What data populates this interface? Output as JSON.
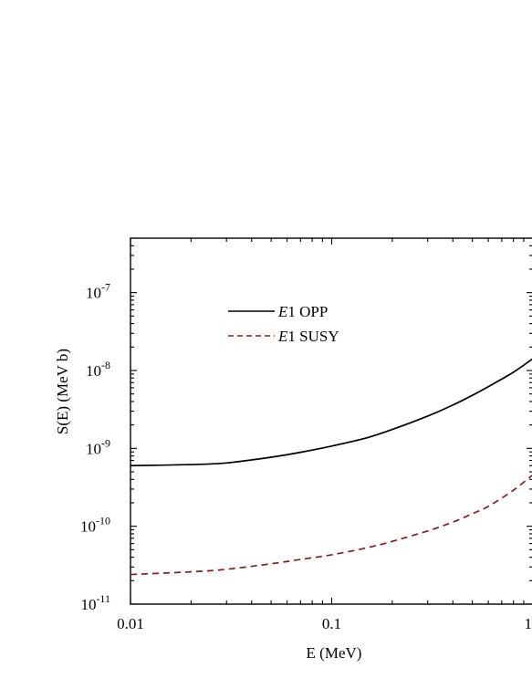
{
  "chart_data": {
    "type": "line",
    "title": "",
    "xlabel": "E (MeV)",
    "ylabel": "S(E) (MeV b)",
    "x_scale": "log",
    "y_scale": "log",
    "xlim": [
      0.01,
      1
    ],
    "ylim": [
      1e-11,
      5e-07
    ],
    "x_ticks": [
      {
        "value": 0.01,
        "label": "0.01"
      },
      {
        "value": 0.1,
        "label": "0.1"
      },
      {
        "value": 1,
        "label": "1"
      }
    ],
    "y_ticks": [
      {
        "value": 1e-11,
        "base": "10",
        "exp": "-11"
      },
      {
        "value": 1e-10,
        "base": "10",
        "exp": "-10"
      },
      {
        "value": 1e-09,
        "base": "10",
        "exp": "-9"
      },
      {
        "value": 1e-08,
        "base": "10",
        "exp": "-8"
      },
      {
        "value": 1e-07,
        "base": "10",
        "exp": "-7"
      }
    ],
    "grid": false,
    "legend_position": "top-left",
    "series": [
      {
        "name": "E1 OPP",
        "name_italic": "E",
        "name_rest": "1 OPP",
        "color": "#000000",
        "dash": "solid",
        "x": [
          0.01,
          0.02,
          0.03,
          0.05,
          0.07,
          0.1,
          0.15,
          0.2,
          0.3,
          0.4,
          0.5,
          0.6,
          0.8,
          1.0
        ],
        "y": [
          6e-10,
          6.2e-10,
          6.5e-10,
          7.7e-10,
          8.9e-10,
          1.07e-09,
          1.37e-09,
          1.75e-09,
          2.6e-09,
          3.6e-09,
          4.8e-09,
          6.2e-09,
          9.5e-09,
          1.42e-08
        ]
      },
      {
        "name": "E1 SUSY",
        "name_italic": "E",
        "name_rest": "1 SUSY",
        "color": "#8b1a1a",
        "dash": "dashed",
        "x": [
          0.01,
          0.02,
          0.03,
          0.05,
          0.07,
          0.1,
          0.15,
          0.2,
          0.3,
          0.4,
          0.5,
          0.6,
          0.8,
          1.0
        ],
        "y": [
          2.4e-11,
          2.6e-11,
          2.8e-11,
          3.3e-11,
          3.75e-11,
          4.3e-11,
          5.3e-11,
          6.4e-11,
          8.7e-11,
          1.13e-10,
          1.45e-10,
          1.8e-10,
          2.9e-10,
          4.6e-10
        ]
      }
    ]
  }
}
